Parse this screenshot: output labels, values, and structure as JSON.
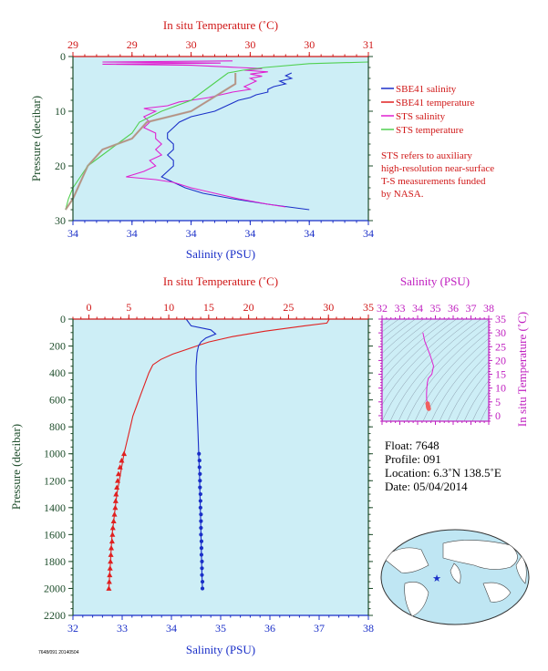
{
  "colors": {
    "plot_bg": "#cdeef6",
    "temperature": "#e02020",
    "salinity": "#1a2fc8",
    "sts_salinity": "#e020d0",
    "sts_temperature": "#50d050",
    "temp_salinity_gray": "#b0a090",
    "magenta_axis": "#c020c0",
    "green_axis": "#1e4d2b",
    "red_axis": "#d01818",
    "blue_axis": "#1a2fc8"
  },
  "chart_data": [
    {
      "id": "near-surface",
      "type": "line",
      "title": "",
      "top_axis_label": "In situ Temperature (˚C)",
      "top_ticks": [
        "29",
        "29",
        "30",
        "30",
        "30",
        "31"
      ],
      "bottom_axis_label": "Salinity (PSU)",
      "bottom_ticks": [
        "34",
        "34",
        "34",
        "34",
        "34",
        "34"
      ],
      "ylabel": "Pressure (decibar)",
      "y_ticks": [
        "0",
        "10",
        "20",
        "30"
      ],
      "ylim": [
        0,
        30
      ],
      "temp_lim": [
        29.0,
        31.0
      ],
      "sal_lim": [
        34.0,
        34.5
      ],
      "series": [
        {
          "name": "SBE41 salinity",
          "axis": "salinity",
          "color_key": "salinity",
          "points": [
            [
              34.37,
              3
            ],
            [
              34.36,
              3.5
            ],
            [
              34.37,
              4
            ],
            [
              34.35,
              4.5
            ],
            [
              34.36,
              5
            ],
            [
              34.34,
              5.5
            ],
            [
              34.33,
              6
            ],
            [
              34.33,
              6.5
            ],
            [
              34.31,
              7
            ],
            [
              34.3,
              7.5
            ],
            [
              34.28,
              8
            ],
            [
              34.27,
              8.5
            ],
            [
              34.26,
              9
            ],
            [
              34.25,
              9.5
            ],
            [
              34.24,
              10
            ],
            [
              34.22,
              10.5
            ],
            [
              34.2,
              11
            ],
            [
              34.18,
              12
            ],
            [
              34.17,
              13
            ],
            [
              34.16,
              14
            ],
            [
              34.16,
              15
            ],
            [
              34.17,
              16
            ],
            [
              34.17,
              17
            ],
            [
              34.16,
              18
            ],
            [
              34.17,
              19
            ],
            [
              34.17,
              20
            ],
            [
              34.16,
              21
            ],
            [
              34.15,
              22
            ],
            [
              34.17,
              23
            ],
            [
              34.19,
              24
            ],
            [
              34.22,
              25
            ],
            [
              34.27,
              26
            ],
            [
              34.33,
              27
            ],
            [
              34.4,
              28
            ]
          ]
        },
        {
          "name": "SBE41 temperature",
          "axis": "temperature",
          "color_key": "temperature",
          "points": [
            [
              30.1,
              3
            ],
            [
              30.1,
              5
            ],
            [
              29.8,
              10
            ],
            [
              29.5,
              12
            ],
            [
              29.4,
              15
            ],
            [
              29.2,
              17
            ],
            [
              29.1,
              20
            ],
            [
              29.05,
              23
            ],
            [
              29.0,
              26
            ],
            [
              28.95,
              28
            ]
          ]
        },
        {
          "name": "STS salinity",
          "axis": "salinity",
          "color_key": "sts_salinity",
          "points": [
            [
              34.27,
              0.8
            ],
            [
              34.05,
              1
            ],
            [
              34.25,
              1.2
            ],
            [
              34.05,
              1.4
            ],
            [
              34.2,
              1.6
            ],
            [
              34.28,
              2
            ],
            [
              34.32,
              2.2
            ],
            [
              34.29,
              2.5
            ],
            [
              34.33,
              2.8
            ],
            [
              34.3,
              3.2
            ],
            [
              34.32,
              3.6
            ],
            [
              34.3,
              4
            ],
            [
              34.31,
              4.5
            ],
            [
              34.3,
              5
            ],
            [
              34.29,
              5.5
            ],
            [
              34.3,
              6
            ],
            [
              34.27,
              6.5
            ],
            [
              34.25,
              7
            ],
            [
              34.23,
              7.5
            ],
            [
              34.2,
              8
            ],
            [
              34.18,
              8.3
            ],
            [
              34.16,
              9
            ],
            [
              34.12,
              9.5
            ],
            [
              34.14,
              10
            ],
            [
              34.12,
              11
            ],
            [
              34.13,
              12
            ],
            [
              34.12,
              13
            ],
            [
              34.14,
              14
            ],
            [
              34.14,
              15
            ],
            [
              34.15,
              16
            ],
            [
              34.14,
              17
            ],
            [
              34.15,
              18
            ],
            [
              34.13,
              19
            ],
            [
              34.14,
              20
            ],
            [
              34.12,
              21
            ],
            [
              34.09,
              22
            ],
            [
              34.14,
              22.5
            ],
            [
              34.17,
              23
            ],
            [
              34.2,
              24
            ],
            [
              34.24,
              25
            ],
            [
              34.28,
              26
            ],
            [
              34.33,
              27
            ],
            [
              34.36,
              27.5
            ]
          ]
        },
        {
          "name": "STS temperature",
          "axis": "temperature",
          "color_key": "sts_temperature",
          "points": [
            [
              31.0,
              1
            ],
            [
              30.6,
              1.3
            ],
            [
              30.3,
              2
            ],
            [
              30.15,
              2.5
            ],
            [
              30.05,
              3
            ],
            [
              29.95,
              5
            ],
            [
              29.8,
              8
            ],
            [
              29.6,
              10
            ],
            [
              29.45,
              12
            ],
            [
              29.4,
              14
            ],
            [
              29.3,
              16
            ],
            [
              29.2,
              18
            ],
            [
              29.1,
              20
            ],
            [
              29.05,
              22
            ],
            [
              29.0,
              24
            ],
            [
              28.97,
              26
            ],
            [
              28.95,
              28
            ]
          ]
        }
      ]
    },
    {
      "id": "full-profile",
      "type": "line",
      "title": "",
      "top_axis_label": "In situ Temperature (˚C)",
      "top_ticks": [
        "0",
        "5",
        "10",
        "15",
        "20",
        "25",
        "30",
        "35"
      ],
      "bottom_axis_label": "Salinity (PSU)",
      "bottom_ticks": [
        "32",
        "33",
        "34",
        "35",
        "36",
        "37",
        "38"
      ],
      "ylabel": "Pressure (decibar)",
      "y_ticks": [
        "0",
        "200",
        "400",
        "600",
        "800",
        "1000",
        "1200",
        "1400",
        "1600",
        "1800",
        "2000",
        "2200"
      ],
      "ylim": [
        0,
        2200
      ],
      "temp_lim": [
        -2,
        35
      ],
      "sal_lim": [
        32,
        38
      ],
      "series": [
        {
          "name": "temperature",
          "axis": "temperature",
          "color_key": "temperature",
          "points": [
            [
              30.1,
              0
            ],
            [
              29.8,
              30
            ],
            [
              27,
              50
            ],
            [
              22,
              90
            ],
            [
              18,
              130
            ],
            [
              15,
              170
            ],
            [
              13.5,
              200
            ],
            [
              12,
              230
            ],
            [
              10.5,
              260
            ],
            [
              9,
              300
            ],
            [
              8,
              340
            ],
            [
              7.5,
              400
            ],
            [
              7,
              480
            ],
            [
              6.5,
              560
            ],
            [
              6,
              640
            ],
            [
              5.5,
              720
            ],
            [
              5.2,
              800
            ],
            [
              4.8,
              900
            ],
            [
              4.4,
              1000
            ],
            [
              4.1,
              1100
            ],
            [
              3.8,
              1200
            ],
            [
              3.5,
              1300
            ],
            [
              3.3,
              1400
            ],
            [
              3.1,
              1500
            ],
            [
              2.9,
              1600
            ],
            [
              2.8,
              1700
            ],
            [
              2.7,
              1800
            ],
            [
              2.6,
              1900
            ],
            [
              2.5,
              2000
            ]
          ]
        },
        {
          "name": "salinity",
          "axis": "salinity",
          "color_key": "salinity",
          "points": [
            [
              34.3,
              0
            ],
            [
              34.4,
              50
            ],
            [
              34.8,
              80
            ],
            [
              34.9,
              110
            ],
            [
              34.7,
              140
            ],
            [
              34.6,
              170
            ],
            [
              34.55,
              200
            ],
            [
              34.52,
              250
            ],
            [
              34.5,
              350
            ],
            [
              34.5,
              450
            ],
            [
              34.51,
              550
            ],
            [
              34.52,
              650
            ],
            [
              34.53,
              750
            ],
            [
              34.54,
              850
            ],
            [
              34.55,
              950
            ],
            [
              34.56,
              1050
            ],
            [
              34.57,
              1150
            ],
            [
              34.58,
              1300
            ],
            [
              34.59,
              1450
            ],
            [
              34.6,
              1600
            ],
            [
              34.61,
              1750
            ],
            [
              34.62,
              1900
            ],
            [
              34.63,
              2000
            ]
          ]
        }
      ],
      "temp_markers": [
        [
          4.4,
          1000
        ],
        [
          4.1,
          1050
        ],
        [
          3.9,
          1100
        ],
        [
          3.7,
          1150
        ],
        [
          3.6,
          1200
        ],
        [
          3.5,
          1250
        ],
        [
          3.4,
          1300
        ],
        [
          3.35,
          1350
        ],
        [
          3.3,
          1400
        ],
        [
          3.2,
          1450
        ],
        [
          3.1,
          1500
        ],
        [
          3.0,
          1550
        ],
        [
          2.95,
          1600
        ],
        [
          2.9,
          1650
        ],
        [
          2.8,
          1700
        ],
        [
          2.75,
          1750
        ],
        [
          2.7,
          1800
        ],
        [
          2.65,
          1850
        ],
        [
          2.6,
          1900
        ],
        [
          2.55,
          1950
        ],
        [
          2.5,
          2000
        ]
      ],
      "sal_markers": [
        [
          34.56,
          1000
        ],
        [
          34.57,
          1050
        ],
        [
          34.57,
          1100
        ],
        [
          34.58,
          1150
        ],
        [
          34.58,
          1200
        ],
        [
          34.58,
          1250
        ],
        [
          34.59,
          1300
        ],
        [
          34.59,
          1350
        ],
        [
          34.59,
          1400
        ],
        [
          34.6,
          1450
        ],
        [
          34.6,
          1500
        ],
        [
          34.6,
          1550
        ],
        [
          34.6,
          1600
        ],
        [
          34.61,
          1650
        ],
        [
          34.61,
          1700
        ],
        [
          34.61,
          1750
        ],
        [
          34.62,
          1800
        ],
        [
          34.62,
          1850
        ],
        [
          34.62,
          1900
        ],
        [
          34.63,
          1950
        ],
        [
          34.63,
          2000
        ]
      ]
    },
    {
      "id": "ts-diagram",
      "type": "scatter",
      "title": "",
      "top_axis_label": "Salinity (PSU)",
      "top_ticks": [
        "32",
        "33",
        "34",
        "35",
        "36",
        "37",
        "38"
      ],
      "right_axis_label": "In situ Temperature (˚C)",
      "right_ticks": [
        "0",
        "5",
        "10",
        "15",
        "20",
        "25",
        "30",
        "35"
      ],
      "sal_lim": [
        32,
        38
      ],
      "temp_lim": [
        -2,
        35
      ],
      "points": [
        [
          34.3,
          30.1
        ],
        [
          34.4,
          27
        ],
        [
          34.7,
          22
        ],
        [
          34.9,
          18
        ],
        [
          34.8,
          15
        ],
        [
          34.6,
          13.5
        ],
        [
          34.55,
          12
        ],
        [
          34.52,
          10
        ],
        [
          34.5,
          8
        ],
        [
          34.5,
          7
        ],
        [
          34.51,
          6
        ],
        [
          34.52,
          5.5
        ],
        [
          34.54,
          5
        ],
        [
          34.56,
          4.4
        ],
        [
          34.58,
          3.5
        ],
        [
          34.6,
          3
        ],
        [
          34.62,
          2.6
        ],
        [
          34.63,
          2.5
        ]
      ],
      "marker_points": [
        [
          34.56,
          4.4
        ],
        [
          34.57,
          4.1
        ],
        [
          34.58,
          3.8
        ],
        [
          34.58,
          3.5
        ],
        [
          34.59,
          3.3
        ],
        [
          34.6,
          3.1
        ],
        [
          34.6,
          2.9
        ],
        [
          34.61,
          2.8
        ],
        [
          34.62,
          2.7
        ],
        [
          34.63,
          2.5
        ]
      ]
    }
  ],
  "legend": {
    "items": [
      {
        "label": "SBE41 salinity",
        "color_key": "salinity"
      },
      {
        "label": "SBE41 temperature",
        "color_key": "temperature"
      },
      {
        "label": "STS salinity",
        "color_key": "sts_salinity"
      },
      {
        "label": "STS temperature",
        "color_key": "sts_temperature"
      }
    ],
    "note_lines": [
      "STS refers to auxiliary",
      "high-resolution near-surface",
      "T-S measurements funded",
      "by NASA."
    ]
  },
  "info": {
    "float": "Float: 7648",
    "profile": "Profile: 091",
    "location": "Location: 6.3˚N 138.5˚E",
    "date": "Date: 05/04/2014"
  },
  "footer_code": "7648/091 20140504",
  "map": {
    "float_marker_icon": "star-icon",
    "ocean_color": "#bfe6f3",
    "land_color": "#ffffff"
  }
}
